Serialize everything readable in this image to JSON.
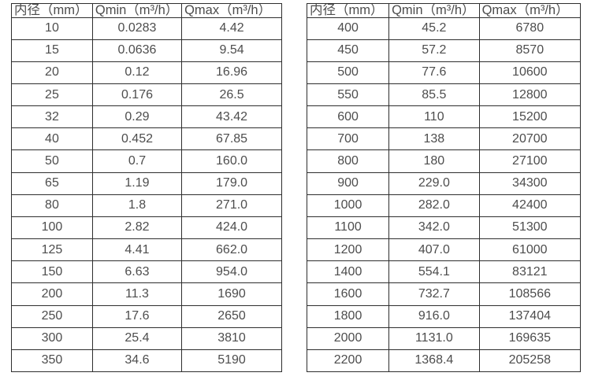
{
  "page": {
    "background_color": "#ffffff",
    "text_color": "#4d4d4d",
    "border_color": "#2e2e2e"
  },
  "tables": [
    {
      "name": "flow-spec-table-small-diameters",
      "headers": [
        "内径（mm）",
        "Qmin（m³/h）",
        "Qmax（m³/h）"
      ],
      "rows": [
        [
          "10",
          "0.0283",
          "4.42"
        ],
        [
          "15",
          "0.0636",
          "9.54"
        ],
        [
          "20",
          "0.12",
          "16.96"
        ],
        [
          "25",
          "0.176",
          "26.5"
        ],
        [
          "32",
          "0.29",
          "43.42"
        ],
        [
          "40",
          "0.452",
          "67.85"
        ],
        [
          "50",
          "0.7",
          "160.0"
        ],
        [
          "65",
          "1.19",
          "179.0"
        ],
        [
          "80",
          "1.8",
          "271.0"
        ],
        [
          "100",
          "2.82",
          "424.0"
        ],
        [
          "125",
          "4.41",
          "662.0"
        ],
        [
          "150",
          "6.63",
          "954.0"
        ],
        [
          "200",
          "11.3",
          "1690"
        ],
        [
          "250",
          "17.6",
          "2650"
        ],
        [
          "300",
          "25.4",
          "3810"
        ],
        [
          "350",
          "34.6",
          "5190"
        ]
      ]
    },
    {
      "name": "flow-spec-table-large-diameters",
      "headers": [
        "内径（mm）",
        "Qmin（m³/h）",
        "Qmax（m³/h）"
      ],
      "rows": [
        [
          "400",
          "45.2",
          "6780"
        ],
        [
          "450",
          "57.2",
          "8570"
        ],
        [
          "500",
          "77.6",
          "10600"
        ],
        [
          "550",
          "85.5",
          "12800"
        ],
        [
          "600",
          "110",
          "15200"
        ],
        [
          "700",
          "138",
          "20700"
        ],
        [
          "800",
          "180",
          "27100"
        ],
        [
          "900",
          "229.0",
          "34300"
        ],
        [
          "1000",
          "282.0",
          "42400"
        ],
        [
          "1100",
          "342.0",
          "51300"
        ],
        [
          "1200",
          "407.0",
          "61000"
        ],
        [
          "1400",
          "554.1",
          "83121"
        ],
        [
          "1600",
          "732.7",
          "108566"
        ],
        [
          "1800",
          "916.0",
          "137404"
        ],
        [
          "2000",
          "1131.0",
          "169635"
        ],
        [
          "2200",
          "1368.4",
          "205258"
        ]
      ]
    }
  ]
}
